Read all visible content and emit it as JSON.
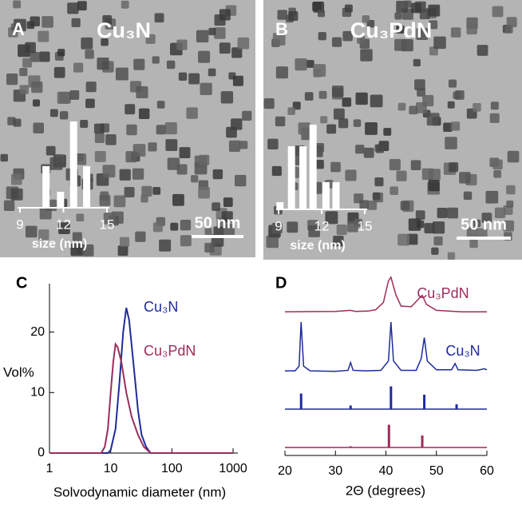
{
  "chart_data": [
    {
      "type": "bar",
      "label": "A",
      "title": "Cu₃N",
      "scale_bar": "50 nm",
      "color": "#ffffff",
      "x": [
        10.8,
        11.8,
        12.7,
        13.6
      ],
      "values": [
        52,
        20,
        108,
        52
      ],
      "xlim": [
        9,
        15
      ],
      "xticks": [
        9,
        12,
        15
      ],
      "ylim": [
        0,
        110
      ],
      "xlabel": "size (nm)"
    },
    {
      "type": "bar",
      "label": "B",
      "title": "Cu₃PdN",
      "scale_bar": "50 nm",
      "color": "#ffffff",
      "x": [
        9.1,
        9.9,
        10.7,
        11.4,
        12.3,
        13.0
      ],
      "values": [
        9,
        79,
        79,
        106,
        34,
        34
      ],
      "xlim": [
        9,
        15
      ],
      "xticks": [
        9,
        12,
        15
      ],
      "ylim": [
        0,
        110
      ],
      "xlabel": "size (nm)"
    },
    {
      "type": "line",
      "label": "C",
      "xscale": "log",
      "xlim": [
        1,
        1000
      ],
      "xticks": [
        1,
        10,
        100,
        1000
      ],
      "ylim": [
        0,
        28
      ],
      "yticks": [
        0,
        10,
        20
      ],
      "ylabel": "Vol%",
      "xlabel": "Solvodynamic diameter (nm)",
      "series": [
        {
          "name": "Cu₃N",
          "color": "#1f2a9e",
          "x": [
            1,
            9,
            10,
            12,
            14,
            16,
            18,
            20,
            24,
            28,
            32,
            38,
            45,
            1000
          ],
          "values": [
            0,
            0,
            0.5,
            4,
            12,
            20,
            24,
            22,
            14,
            7,
            3,
            1,
            0,
            0
          ]
        },
        {
          "name": "Cu₃PdN",
          "color": "#9b2c5a",
          "x": [
            1,
            7,
            8,
            9,
            10,
            11,
            12,
            13,
            15,
            18,
            22,
            28,
            35,
            45,
            1000
          ],
          "values": [
            0,
            0,
            1,
            4,
            10,
            15,
            18,
            17.5,
            15,
            10,
            6,
            3,
            1,
            0,
            0
          ]
        }
      ]
    },
    {
      "type": "xrd",
      "label": "D",
      "xlim": [
        20,
        60
      ],
      "xticks": [
        20,
        30,
        40,
        50,
        60
      ],
      "ylim": [
        0,
        100
      ],
      "xlabel": "2Θ (degrees)",
      "series": [
        {
          "name": "Cu₃PdN",
          "color": "#9b2c5a",
          "x": [
            20,
            30,
            33,
            34,
            36.5,
            38,
            39.5,
            40.5,
            41,
            42,
            43,
            45,
            46.5,
            47.2,
            48,
            50,
            55,
            60
          ],
          "values": [
            4,
            5,
            8,
            5,
            6,
            10,
            30,
            90,
            100,
            50,
            20,
            18,
            40,
            50,
            25,
            8,
            4,
            4
          ]
        },
        {
          "name": "Cu₃N",
          "color": "#1f2a9e",
          "x": [
            20,
            22,
            22.8,
            23.2,
            23.7,
            25,
            30,
            32.5,
            33,
            33.5,
            36,
            39,
            40.5,
            41,
            41.5,
            43,
            46,
            47,
            47.6,
            48.2,
            50,
            53,
            53.7,
            54.3,
            58,
            59.5,
            60
          ],
          "values": [
            6,
            6,
            15,
            100,
            15,
            6,
            5,
            7,
            22,
            7,
            6,
            7,
            25,
            100,
            25,
            7,
            7,
            30,
            70,
            25,
            8,
            8,
            20,
            8,
            7,
            10,
            8
          ]
        }
      ],
      "references": [
        {
          "color": "#1f2a9e",
          "x": [
            23.2,
            33,
            41,
            47.6,
            54
          ],
          "values": [
            65,
            15,
            95,
            60,
            20
          ]
        },
        {
          "color": "#9b2c5a",
          "x": [
            33,
            40.6,
            47.2
          ],
          "values": [
            5,
            95,
            50
          ]
        }
      ]
    }
  ]
}
